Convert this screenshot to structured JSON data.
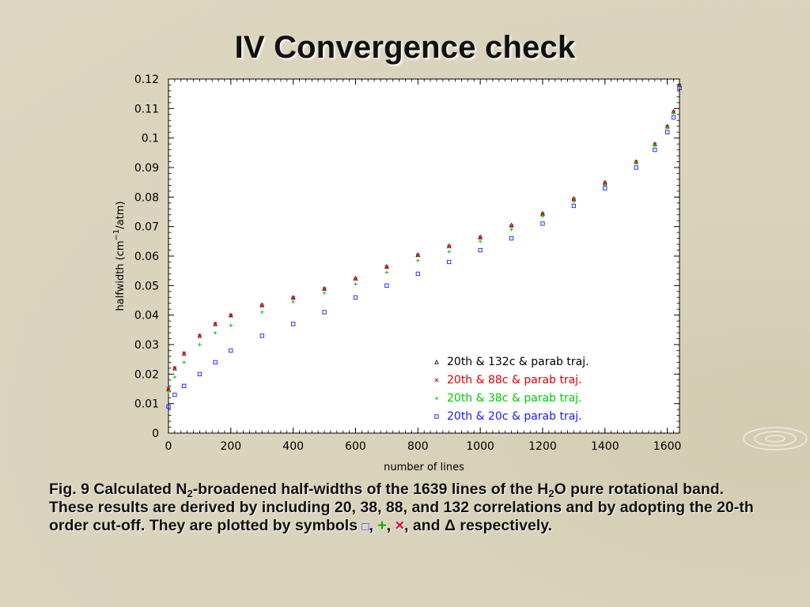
{
  "slide": {
    "title": "IV Convergence check"
  },
  "caption": {
    "part1": "Fig. 9 Calculated N",
    "sub1": "2",
    "part2": "-broadened half-widths of the 1639 lines of the H",
    "sub2": "2",
    "part3": "O pure rotational band. These results are derived by including 20, 38, 88, and 132 correlations and by adopting the 20-th order cut-off. They are plotted by symbols ",
    "sym1": "□",
    "sep1": ", ",
    "sym2": "+",
    "sep2": ", ",
    "sym3": "×",
    "sep3": ", and ",
    "sym4": "Δ",
    "part4": " respectively."
  },
  "colors": {
    "background": "#dcd6c0",
    "plot_background": "#ffffff",
    "series_132c": "#000000",
    "series_88c": "#e00000",
    "series_38c": "#00cc00",
    "series_20c": "#1a1aff"
  },
  "chart_data": {
    "type": "scatter",
    "title": "",
    "xlabel": "number of lines",
    "ylabel_main": "halfwidth (cm",
    "ylabel_sup": "−1",
    "ylabel_end": "/atm)",
    "xlim": [
      0,
      1639
    ],
    "ylim": [
      0,
      0.12
    ],
    "xticks": [
      0,
      200,
      400,
      600,
      800,
      1000,
      1200,
      1400,
      1600
    ],
    "xtick_labels": [
      "0",
      "200",
      "400",
      "600",
      "800",
      "1000",
      "1200",
      "1400",
      "1600"
    ],
    "yticks": [
      0,
      0.01,
      0.02,
      0.03,
      0.04,
      0.05,
      0.06,
      0.07,
      0.08,
      0.09,
      0.1,
      0.11,
      0.12
    ],
    "ytick_labels": [
      "0",
      "0.01",
      "0.02",
      "0.03",
      "0.04",
      "0.05",
      "0.06",
      "0.07",
      "0.08",
      "0.09",
      "0.1",
      "0.11",
      "0.12"
    ],
    "grid": false,
    "legend_position": "bottom-right",
    "legend": [
      {
        "symbol": "△",
        "label": "20th  &  132c  &  parab  traj.",
        "color": "#000000"
      },
      {
        "symbol": "×",
        "label": "20th  &  88c  &  parab  traj.",
        "color": "#e00000"
      },
      {
        "symbol": "+",
        "label": "20th  &  38c  &  parab  traj.",
        "color": "#00cc00"
      },
      {
        "symbol": "□",
        "label": "20th  &  20c  &  parab  traj.",
        "color": "#1a1aff"
      }
    ],
    "series": [
      {
        "marker": "triangle",
        "color": "#000000",
        "points": [
          [
            0,
            0.015
          ],
          [
            20,
            0.022
          ],
          [
            50,
            0.027
          ],
          [
            100,
            0.033
          ],
          [
            150,
            0.037
          ],
          [
            200,
            0.04
          ],
          [
            300,
            0.0435
          ],
          [
            400,
            0.046
          ],
          [
            500,
            0.049
          ],
          [
            600,
            0.0525
          ],
          [
            700,
            0.0565
          ],
          [
            800,
            0.0605
          ],
          [
            900,
            0.0635
          ],
          [
            1000,
            0.0665
          ],
          [
            1100,
            0.0705
          ],
          [
            1200,
            0.0745
          ],
          [
            1300,
            0.0795
          ],
          [
            1400,
            0.085
          ],
          [
            1500,
            0.092
          ],
          [
            1560,
            0.098
          ],
          [
            1600,
            0.104
          ],
          [
            1620,
            0.109
          ],
          [
            1639,
            0.118
          ]
        ]
      },
      {
        "marker": "cross",
        "color": "#e00000",
        "points": [
          [
            0,
            0.015
          ],
          [
            20,
            0.022
          ],
          [
            50,
            0.027
          ],
          [
            100,
            0.033
          ],
          [
            150,
            0.037
          ],
          [
            200,
            0.0398
          ],
          [
            300,
            0.0432
          ],
          [
            400,
            0.0458
          ],
          [
            500,
            0.0488
          ],
          [
            600,
            0.0522
          ],
          [
            700,
            0.0562
          ],
          [
            800,
            0.0602
          ],
          [
            900,
            0.0632
          ],
          [
            1000,
            0.0662
          ],
          [
            1100,
            0.0702
          ],
          [
            1200,
            0.0742
          ],
          [
            1300,
            0.0792
          ],
          [
            1400,
            0.0847
          ],
          [
            1500,
            0.0918
          ],
          [
            1560,
            0.0978
          ],
          [
            1600,
            0.1038
          ],
          [
            1620,
            0.1088
          ],
          [
            1639,
            0.1178
          ]
        ]
      },
      {
        "marker": "plus",
        "color": "#00cc00",
        "points": [
          [
            0,
            0.014
          ],
          [
            20,
            0.019
          ],
          [
            50,
            0.024
          ],
          [
            100,
            0.03
          ],
          [
            150,
            0.034
          ],
          [
            200,
            0.0365
          ],
          [
            300,
            0.041
          ],
          [
            400,
            0.0445
          ],
          [
            500,
            0.0475
          ],
          [
            600,
            0.0505
          ],
          [
            700,
            0.0545
          ],
          [
            800,
            0.0585
          ],
          [
            900,
            0.0615
          ],
          [
            1000,
            0.065
          ],
          [
            1100,
            0.069
          ],
          [
            1200,
            0.0735
          ],
          [
            1300,
            0.0785
          ],
          [
            1400,
            0.084
          ],
          [
            1500,
            0.0915
          ],
          [
            1560,
            0.0975
          ],
          [
            1600,
            0.1035
          ],
          [
            1620,
            0.1085
          ],
          [
            1639,
            0.1175
          ]
        ]
      },
      {
        "marker": "square",
        "color": "#1a1aff",
        "points": [
          [
            0,
            0.009
          ],
          [
            20,
            0.013
          ],
          [
            50,
            0.016
          ],
          [
            100,
            0.02
          ],
          [
            150,
            0.024
          ],
          [
            200,
            0.028
          ],
          [
            300,
            0.033
          ],
          [
            400,
            0.037
          ],
          [
            500,
            0.041
          ],
          [
            600,
            0.046
          ],
          [
            700,
            0.05
          ],
          [
            800,
            0.054
          ],
          [
            900,
            0.058
          ],
          [
            1000,
            0.062
          ],
          [
            1100,
            0.066
          ],
          [
            1200,
            0.071
          ],
          [
            1300,
            0.077
          ],
          [
            1400,
            0.083
          ],
          [
            1500,
            0.09
          ],
          [
            1560,
            0.096
          ],
          [
            1600,
            0.102
          ],
          [
            1620,
            0.107
          ],
          [
            1639,
            0.117
          ]
        ]
      }
    ]
  }
}
